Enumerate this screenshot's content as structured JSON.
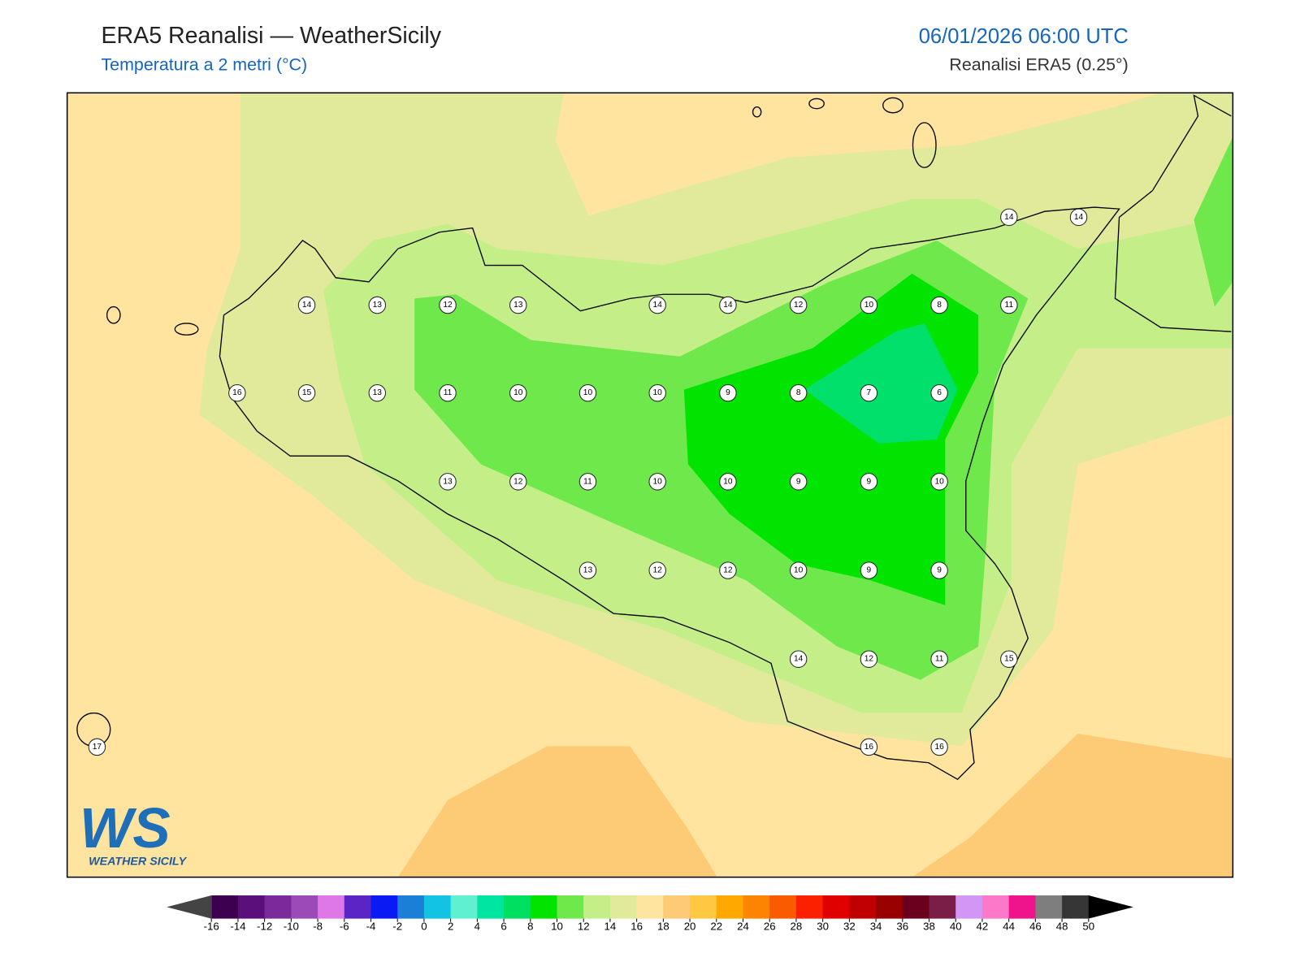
{
  "header": {
    "title": "ERA5 Reanalisi — WeatherSicily",
    "subtitle": "Temperatura a 2 metri (°C)",
    "datetime": "06/01/2026 06:00 UTC",
    "source": "Reanalisi ERA5 (0.25°)"
  },
  "map": {
    "stations": [
      14,
      14,
      14,
      13,
      12,
      13,
      14,
      14,
      12,
      10,
      8,
      11,
      16,
      15,
      13,
      11,
      10,
      10,
      10,
      9,
      8,
      7,
      6,
      13,
      12,
      11,
      10,
      10,
      9,
      9,
      10,
      13,
      12,
      12,
      10,
      9,
      9,
      14,
      12,
      11,
      15,
      17,
      16,
      16
    ]
  },
  "legend": {
    "ticks": [
      -16,
      -14,
      -12,
      -10,
      -8,
      -6,
      -4,
      -2,
      0,
      2,
      4,
      6,
      8,
      10,
      12,
      14,
      16,
      18,
      20,
      22,
      24,
      26,
      28,
      30,
      32,
      34,
      36,
      38,
      40,
      42,
      44,
      46,
      48,
      50
    ],
    "colors": [
      "#3d0050",
      "#5a0f7a",
      "#7a2a9a",
      "#9a4bb8",
      "#dd78e6",
      "#5b25c6",
      "#0a1af5",
      "#1b7fd8",
      "#12c3e2",
      "#5ef0d0",
      "#00e6a0",
      "#00e060",
      "#00e400",
      "#6ee84a",
      "#c4ef88",
      "#e1ea9a",
      "#ffe4a0",
      "#fdca75",
      "#fec840",
      "#fea800",
      "#fc8400",
      "#fa5a00",
      "#fa2000",
      "#e00000",
      "#c00000",
      "#980000",
      "#6a001e",
      "#7a1e48",
      "#d296f4",
      "#fc78c8",
      "#f0148c",
      "#7e7e7e",
      "#363636"
    ],
    "under_color": "#444444",
    "over_color": "#000000"
  },
  "logo": {
    "mark": "WS",
    "name": "WEATHER SICILY"
  }
}
